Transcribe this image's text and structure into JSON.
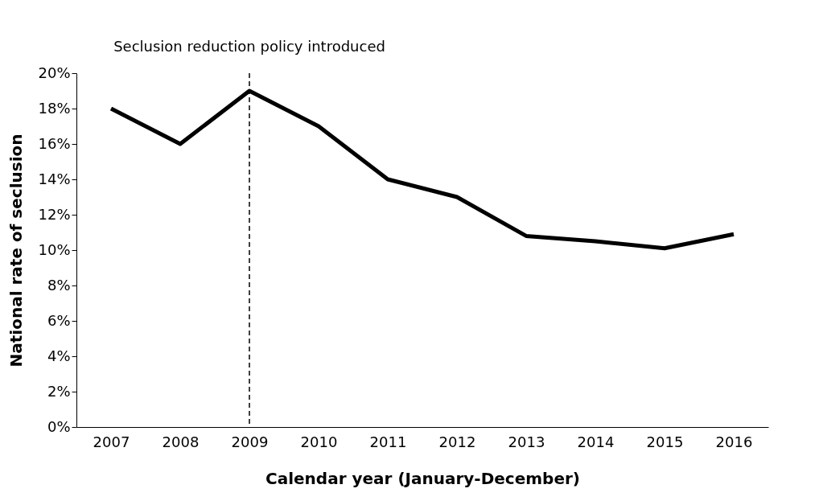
{
  "chart_data": {
    "type": "line",
    "xlabel": "Calendar year (January-December)",
    "ylabel": "National rate of seclusion",
    "categories": [
      "2007",
      "2008",
      "2009",
      "2010",
      "2011",
      "2012",
      "2013",
      "2014",
      "2015",
      "2016"
    ],
    "series": [
      {
        "color": "#000000",
        "values": [
          18,
          16,
          19,
          17,
          14,
          13,
          10.8,
          10.5,
          10.1,
          10.9
        ]
      }
    ],
    "ylim": [
      0,
      20
    ],
    "yticks": [
      {
        "value": 0,
        "label": "0%"
      },
      {
        "value": 2,
        "label": "2%"
      },
      {
        "value": 4,
        "label": "4%"
      },
      {
        "value": 6,
        "label": "6%"
      },
      {
        "value": 8,
        "label": "8%"
      },
      {
        "value": 10,
        "label": "10%"
      },
      {
        "value": 12,
        "label": "12%"
      },
      {
        "value": 14,
        "label": "14%"
      },
      {
        "value": 16,
        "label": "16%"
      },
      {
        "value": 18,
        "label": "18%"
      },
      {
        "value": 20,
        "label": "20%"
      }
    ],
    "ref_lines": [
      {
        "axis": "x",
        "value": "2009",
        "label": "Seclusion reduction policy introduced",
        "line_style": "dashed",
        "color": "#000000"
      }
    ],
    "grid": false,
    "legend": false,
    "marker": "none",
    "line_style": "solid"
  }
}
